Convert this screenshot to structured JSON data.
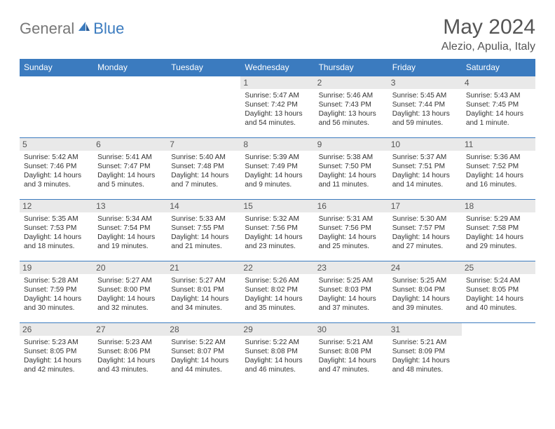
{
  "logo": {
    "general": "General",
    "blue": "Blue"
  },
  "title": "May 2024",
  "location": "Alezio, Apulia, Italy",
  "header_bg": "#3b7bbf",
  "header_fg": "#ffffff",
  "daynum_bg": "#e9e9e9",
  "row_border": "#3b7bbf",
  "columns": [
    "Sunday",
    "Monday",
    "Tuesday",
    "Wednesday",
    "Thursday",
    "Friday",
    "Saturday"
  ],
  "weeks": [
    [
      null,
      null,
      null,
      {
        "n": "1",
        "sunrise": "Sunrise: 5:47 AM",
        "sunset": "Sunset: 7:42 PM",
        "daylight": "Daylight: 13 hours and 54 minutes."
      },
      {
        "n": "2",
        "sunrise": "Sunrise: 5:46 AM",
        "sunset": "Sunset: 7:43 PM",
        "daylight": "Daylight: 13 hours and 56 minutes."
      },
      {
        "n": "3",
        "sunrise": "Sunrise: 5:45 AM",
        "sunset": "Sunset: 7:44 PM",
        "daylight": "Daylight: 13 hours and 59 minutes."
      },
      {
        "n": "4",
        "sunrise": "Sunrise: 5:43 AM",
        "sunset": "Sunset: 7:45 PM",
        "daylight": "Daylight: 14 hours and 1 minute."
      }
    ],
    [
      {
        "n": "5",
        "sunrise": "Sunrise: 5:42 AM",
        "sunset": "Sunset: 7:46 PM",
        "daylight": "Daylight: 14 hours and 3 minutes."
      },
      {
        "n": "6",
        "sunrise": "Sunrise: 5:41 AM",
        "sunset": "Sunset: 7:47 PM",
        "daylight": "Daylight: 14 hours and 5 minutes."
      },
      {
        "n": "7",
        "sunrise": "Sunrise: 5:40 AM",
        "sunset": "Sunset: 7:48 PM",
        "daylight": "Daylight: 14 hours and 7 minutes."
      },
      {
        "n": "8",
        "sunrise": "Sunrise: 5:39 AM",
        "sunset": "Sunset: 7:49 PM",
        "daylight": "Daylight: 14 hours and 9 minutes."
      },
      {
        "n": "9",
        "sunrise": "Sunrise: 5:38 AM",
        "sunset": "Sunset: 7:50 PM",
        "daylight": "Daylight: 14 hours and 11 minutes."
      },
      {
        "n": "10",
        "sunrise": "Sunrise: 5:37 AM",
        "sunset": "Sunset: 7:51 PM",
        "daylight": "Daylight: 14 hours and 14 minutes."
      },
      {
        "n": "11",
        "sunrise": "Sunrise: 5:36 AM",
        "sunset": "Sunset: 7:52 PM",
        "daylight": "Daylight: 14 hours and 16 minutes."
      }
    ],
    [
      {
        "n": "12",
        "sunrise": "Sunrise: 5:35 AM",
        "sunset": "Sunset: 7:53 PM",
        "daylight": "Daylight: 14 hours and 18 minutes."
      },
      {
        "n": "13",
        "sunrise": "Sunrise: 5:34 AM",
        "sunset": "Sunset: 7:54 PM",
        "daylight": "Daylight: 14 hours and 19 minutes."
      },
      {
        "n": "14",
        "sunrise": "Sunrise: 5:33 AM",
        "sunset": "Sunset: 7:55 PM",
        "daylight": "Daylight: 14 hours and 21 minutes."
      },
      {
        "n": "15",
        "sunrise": "Sunrise: 5:32 AM",
        "sunset": "Sunset: 7:56 PM",
        "daylight": "Daylight: 14 hours and 23 minutes."
      },
      {
        "n": "16",
        "sunrise": "Sunrise: 5:31 AM",
        "sunset": "Sunset: 7:56 PM",
        "daylight": "Daylight: 14 hours and 25 minutes."
      },
      {
        "n": "17",
        "sunrise": "Sunrise: 5:30 AM",
        "sunset": "Sunset: 7:57 PM",
        "daylight": "Daylight: 14 hours and 27 minutes."
      },
      {
        "n": "18",
        "sunrise": "Sunrise: 5:29 AM",
        "sunset": "Sunset: 7:58 PM",
        "daylight": "Daylight: 14 hours and 29 minutes."
      }
    ],
    [
      {
        "n": "19",
        "sunrise": "Sunrise: 5:28 AM",
        "sunset": "Sunset: 7:59 PM",
        "daylight": "Daylight: 14 hours and 30 minutes."
      },
      {
        "n": "20",
        "sunrise": "Sunrise: 5:27 AM",
        "sunset": "Sunset: 8:00 PM",
        "daylight": "Daylight: 14 hours and 32 minutes."
      },
      {
        "n": "21",
        "sunrise": "Sunrise: 5:27 AM",
        "sunset": "Sunset: 8:01 PM",
        "daylight": "Daylight: 14 hours and 34 minutes."
      },
      {
        "n": "22",
        "sunrise": "Sunrise: 5:26 AM",
        "sunset": "Sunset: 8:02 PM",
        "daylight": "Daylight: 14 hours and 35 minutes."
      },
      {
        "n": "23",
        "sunrise": "Sunrise: 5:25 AM",
        "sunset": "Sunset: 8:03 PM",
        "daylight": "Daylight: 14 hours and 37 minutes."
      },
      {
        "n": "24",
        "sunrise": "Sunrise: 5:25 AM",
        "sunset": "Sunset: 8:04 PM",
        "daylight": "Daylight: 14 hours and 39 minutes."
      },
      {
        "n": "25",
        "sunrise": "Sunrise: 5:24 AM",
        "sunset": "Sunset: 8:05 PM",
        "daylight": "Daylight: 14 hours and 40 minutes."
      }
    ],
    [
      {
        "n": "26",
        "sunrise": "Sunrise: 5:23 AM",
        "sunset": "Sunset: 8:05 PM",
        "daylight": "Daylight: 14 hours and 42 minutes."
      },
      {
        "n": "27",
        "sunrise": "Sunrise: 5:23 AM",
        "sunset": "Sunset: 8:06 PM",
        "daylight": "Daylight: 14 hours and 43 minutes."
      },
      {
        "n": "28",
        "sunrise": "Sunrise: 5:22 AM",
        "sunset": "Sunset: 8:07 PM",
        "daylight": "Daylight: 14 hours and 44 minutes."
      },
      {
        "n": "29",
        "sunrise": "Sunrise: 5:22 AM",
        "sunset": "Sunset: 8:08 PM",
        "daylight": "Daylight: 14 hours and 46 minutes."
      },
      {
        "n": "30",
        "sunrise": "Sunrise: 5:21 AM",
        "sunset": "Sunset: 8:08 PM",
        "daylight": "Daylight: 14 hours and 47 minutes."
      },
      {
        "n": "31",
        "sunrise": "Sunrise: 5:21 AM",
        "sunset": "Sunset: 8:09 PM",
        "daylight": "Daylight: 14 hours and 48 minutes."
      },
      null
    ]
  ]
}
